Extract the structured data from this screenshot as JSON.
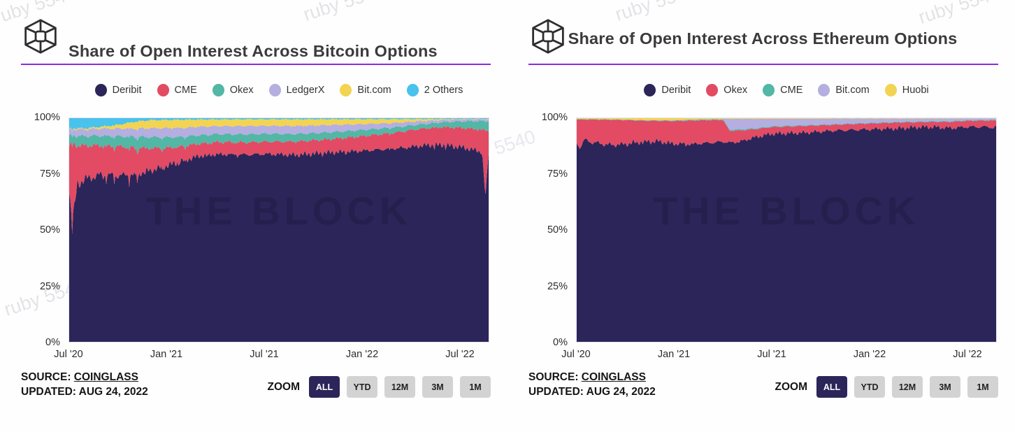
{
  "page": {
    "watermark": "ruby 5540",
    "chart_watermark": "THE BLOCK"
  },
  "charts": [
    {
      "title": "Share of Open Interest Across Bitcoin Options",
      "source": {
        "prefix": "SOURCE:",
        "name": "COINGLASS",
        "updated": "UPDATED: AUG 24, 2022"
      },
      "zoom": {
        "label": "ZOOM",
        "options": [
          "ALL",
          "YTD",
          "12M",
          "3M",
          "1M"
        ],
        "active": "ALL"
      },
      "y_ticks": [
        "100%",
        "75%",
        "50%",
        "25%",
        "0%"
      ],
      "chart_data": {
        "type": "area",
        "stacked": true,
        "percent": true,
        "title": "Share of Open Interest Across Bitcoin Options",
        "ylim": [
          0,
          100
        ],
        "x_unit": "months since Jul 2020",
        "x_months": [
          0,
          0.2,
          0.5,
          1,
          2,
          3,
          4,
          5,
          6,
          7,
          8,
          9,
          9.4,
          10,
          11,
          12,
          14,
          16,
          18,
          20,
          21,
          22,
          23,
          24,
          25,
          25.4,
          25.6,
          25.8
        ],
        "x_ticks": [
          {
            "m": 0,
            "label": "Jul '20"
          },
          {
            "m": 6,
            "label": "Jan '21"
          },
          {
            "m": 12,
            "label": "Jul '21"
          },
          {
            "m": 18,
            "label": "Jan '22"
          },
          {
            "m": 24,
            "label": "Jul '22"
          }
        ],
        "series": [
          {
            "name": "Deribit",
            "color": "#2b2559",
            "jitter": 3.5,
            "jitter_early": 6,
            "notch": true,
            "values": [
              66,
              53,
              70,
              73,
              75,
              74,
              75,
              77,
              79,
              81,
              83,
              84,
              84,
              84.5,
              84,
              84.5,
              84,
              85,
              85,
              86,
              86.5,
              87,
              87.5,
              87,
              86,
              85,
              63,
              84
            ]
          },
          {
            "name": "CME",
            "color": "#e24b63",
            "jitter": 1.6,
            "jitter_early": 4.5,
            "values": [
              20,
              35,
              17,
              15,
              13,
              13,
              12,
              10,
              8,
              6.5,
              5.5,
              5.5,
              5.5,
              5.5,
              5.5,
              5.5,
              6,
              6,
              6.5,
              7,
              7.5,
              7.5,
              8,
              8.5,
              9.5,
              10,
              30,
              9
            ]
          },
          {
            "name": "Okex",
            "color": "#52b7a5",
            "jitter": 0.5,
            "jitter_early": 0.9,
            "values": [
              4.5,
              3.8,
              4.2,
              4.2,
              4.5,
              4.5,
              5,
              5,
              4.8,
              4.2,
              3.8,
              3.6,
              3.6,
              3.6,
              3.6,
              3.6,
              3.4,
              3.1,
              2.8,
              2.4,
              2.1,
              2,
              2.2,
              2.8,
              3.6,
              4,
              4,
              4.4
            ]
          },
          {
            "name": "LedgerX",
            "color": "#b4aee1",
            "jitter": 0.45,
            "values": [
              3,
              2.6,
              3,
              3,
              3.2,
              3.5,
              3.6,
              4,
              4.2,
              4,
              3.8,
              3.6,
              3.6,
              3.6,
              3.8,
              3.6,
              3.6,
              3.3,
              2.6,
              2,
              1.6,
              1.3,
              1,
              0.9,
              0.8,
              0.8,
              0.8,
              0.8
            ]
          },
          {
            "name": "Bit.com",
            "color": "#f2d452",
            "jitter": 0.3,
            "values": [
              0.3,
              0.3,
              0.4,
              0.5,
              0.8,
              1.6,
              3,
              3.6,
              3.6,
              3.6,
              3.2,
              3,
              3,
              3,
              3,
              2.9,
              3,
              2.6,
              2.2,
              1.7,
              1.2,
              0.8,
              0.4,
              0.25,
              0.2,
              0.2,
              0.2,
              0.2
            ]
          },
          {
            "name": "2 Others",
            "color": "#49c2ec",
            "jitter": 0.35,
            "jitter_early": 0.8,
            "values": [
              4.8,
              4.4,
              4.6,
              4.6,
              3.8,
              3,
              1.6,
              0.9,
              0.8,
              0.7,
              0.6,
              0.55,
              0.55,
              0.55,
              0.5,
              0.5,
              0.5,
              0.45,
              0.45,
              0.4,
              0.4,
              0.35,
              0.35,
              0.3,
              0.3,
              0.3,
              0.3,
              0.3
            ]
          }
        ]
      }
    },
    {
      "title": "Share of Open Interest Across Ethereum Options",
      "source": {
        "prefix": "SOURCE:",
        "name": "COINGLASS",
        "updated": "UPDATED: AUG 24, 2022"
      },
      "zoom": {
        "label": "ZOOM",
        "options": [
          "ALL",
          "YTD",
          "12M",
          "3M",
          "1M"
        ],
        "active": "ALL"
      },
      "y_ticks": [
        "100%",
        "75%",
        "50%",
        "25%",
        "0%"
      ],
      "chart_data": {
        "type": "area",
        "stacked": true,
        "percent": true,
        "title": "Share of Open Interest Across Ethereum Options",
        "ylim": [
          0,
          100
        ],
        "x_unit": "months since Jul 2020",
        "x_months": [
          0,
          0.2,
          0.5,
          1,
          2,
          3,
          4,
          5,
          6,
          7,
          8,
          9,
          9.4,
          10,
          11,
          12,
          14,
          16,
          18,
          20,
          21,
          22,
          23,
          24,
          25,
          25.4,
          25.6,
          25.8
        ],
        "x_ticks": [
          {
            "m": 0,
            "label": "Jul '20"
          },
          {
            "m": 6,
            "label": "Jan '21"
          },
          {
            "m": 12,
            "label": "Jul '21"
          },
          {
            "m": 18,
            "label": "Jan '22"
          },
          {
            "m": 24,
            "label": "Jul '22"
          }
        ],
        "series": [
          {
            "name": "Deribit",
            "color": "#2b2559",
            "jitter": 1.6,
            "jitter_early": 2.4,
            "notch": true,
            "values": [
              89,
              87,
              90,
              89,
              88,
              88.5,
              89.5,
              90,
              89,
              88.5,
              89,
              89.5,
              89,
              89.5,
              91.5,
              93,
              93.5,
              94.5,
              95,
              95.5,
              96,
              96,
              95.5,
              96,
              96,
              96,
              95.5,
              96
            ]
          },
          {
            "name": "Okex",
            "color": "#e24b63",
            "jitter": 1.4,
            "jitter_early": 2.2,
            "values": [
              10.2,
              12.2,
              9.2,
              10.2,
              11.2,
              10.7,
              9.4,
              9.2,
              10.2,
              10.5,
              10.2,
              9.7,
              5.4,
              5,
              3.6,
              3,
              3,
              2.6,
              2.6,
              2.6,
              2.2,
              2.3,
              2.8,
              2.7,
              2.8,
              2.8,
              3.3,
              2.8
            ]
          },
          {
            "name": "CME",
            "color": "#52b7a5",
            "jitter": 0.08,
            "values": [
              0.2,
              0.2,
              0.2,
              0.2,
              0.2,
              0.2,
              0.2,
              0.2,
              0.25,
              0.3,
              0.3,
              0.3,
              0.5,
              0.5,
              0.4,
              0.4,
              0.35,
              0.3,
              0.3,
              0.3,
              0.3,
              0.3,
              0.3,
              0.3,
              0.3,
              0.3,
              0.3,
              0.3
            ]
          },
          {
            "name": "Bit.com",
            "color": "#b4aee1",
            "jitter": 0.25,
            "values": [
              0.05,
              0.05,
              0.05,
              0.05,
              0.05,
              0.05,
              0.05,
              0.1,
              0.15,
              0.2,
              0.2,
              0.2,
              4.8,
              4.7,
              4.2,
              3.3,
              2.9,
              2.4,
              1.9,
              1.4,
              1.3,
              1.2,
              1.2,
              0.8,
              0.7,
              0.7,
              0.7,
              0.7
            ]
          },
          {
            "name": "Huobi",
            "color": "#f2d452",
            "jitter": 0.08,
            "values": [
              0.35,
              0.35,
              0.35,
              0.35,
              0.45,
              0.6,
              0.85,
              0.9,
              0.9,
              0.6,
              0.4,
              0.3,
              0.3,
              0.3,
              0.3,
              0.3,
              0.25,
              0.2,
              0.2,
              0.2,
              0.2,
              0.15,
              0.15,
              0.1,
              0.1,
              0.1,
              0.1,
              0.1
            ]
          }
        ]
      }
    }
  ]
}
